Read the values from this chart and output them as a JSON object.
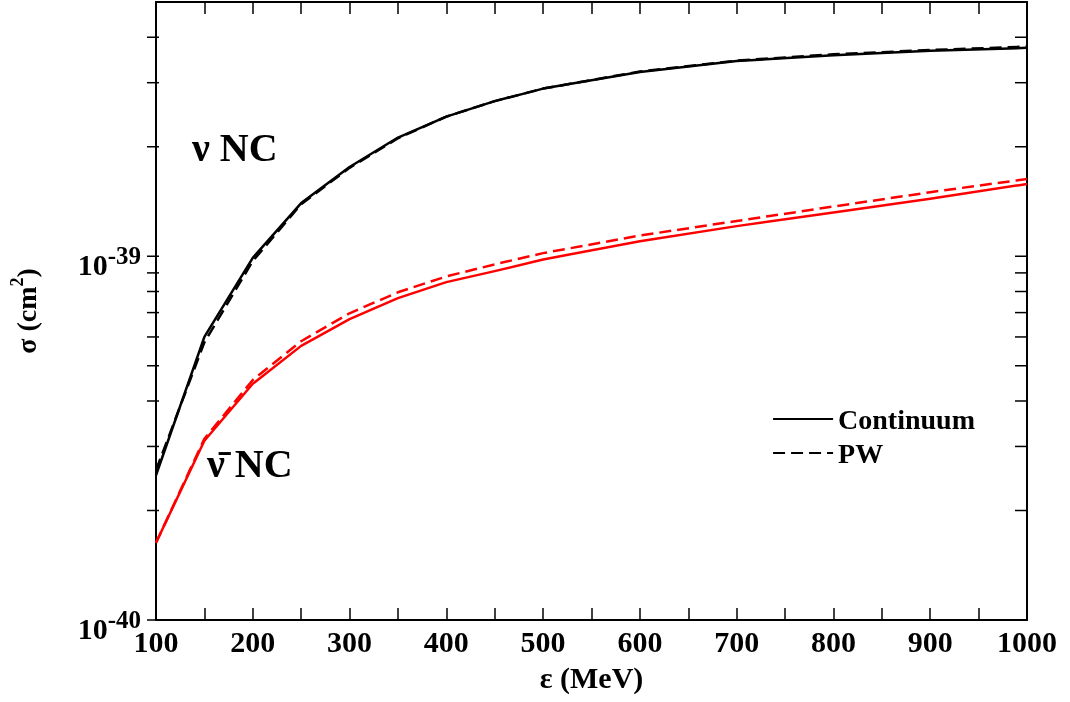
{
  "chart_data": {
    "type": "line",
    "xlabel": "ε (MeV)",
    "ylabel": "σ (cm$^{2}$)",
    "log": "y",
    "grid": false,
    "legend": "right",
    "marker": "none",
    "x": [
      100,
      150,
      200,
      250,
      300,
      350,
      400,
      450,
      500,
      600,
      700,
      800,
      900,
      1000
    ],
    "xlim": [
      100,
      1000
    ],
    "xticks": [
      100,
      {
        "value": 150,
        "label": null
      },
      200,
      {
        "value": 250,
        "label": null
      },
      300,
      {
        "value": 350,
        "label": null
      },
      400,
      {
        "value": 450,
        "label": null
      },
      500,
      {
        "value": 550,
        "label": null
      },
      600,
      {
        "value": 650,
        "label": null
      },
      700,
      {
        "value": 750,
        "label": null
      },
      800,
      {
        "value": 850,
        "label": null
      },
      900,
      {
        "value": 950,
        "label": null
      },
      1000
    ],
    "ylim": [
      1e-40,
      5e-39
    ],
    "yticks": [
      {
        "value": 1e-40,
        "label": "10$^{-40}$"
      },
      {
        "value": 2e-40,
        "label": null
      },
      {
        "value": 3e-40,
        "label": null
      },
      {
        "value": 4e-40,
        "label": null
      },
      {
        "value": 5e-40,
        "label": null
      },
      {
        "value": 6e-40,
        "label": null
      },
      {
        "value": 7e-40,
        "label": null
      },
      {
        "value": 8e-40,
        "label": null
      },
      {
        "value": 9e-40,
        "label": null
      },
      {
        "value": 1e-39,
        "label": "10$^{-39}$"
      },
      {
        "value": 2e-39,
        "label": null
      },
      {
        "value": 3e-39,
        "label": null
      },
      {
        "value": 4e-39,
        "label": null
      }
    ],
    "series": [
      {
        "name": "Continuum",
        "color": "#000000",
        "line_style": "solid",
        "values": [
          2.5e-40,
          6e-40,
          9.9e-40,
          1.4e-39,
          1.76e-39,
          2.12e-39,
          2.42e-39,
          2.67e-39,
          2.89e-39,
          3.21e-39,
          3.44e-39,
          3.57e-39,
          3.67e-39,
          3.74e-39
        ]
      },
      {
        "name": "PW",
        "color": "#000000",
        "line_style": "dashed",
        "values": [
          2.58e-40,
          5.8e-40,
          9.7e-40,
          1.39e-39,
          1.75e-39,
          2.11e-39,
          2.42e-39,
          2.67e-39,
          2.89e-39,
          3.22e-39,
          3.45e-39,
          3.59e-39,
          3.69e-39,
          3.77e-39
        ]
      },
      {
        "color": "#ff0000",
        "line_style": "solid",
        "values": [
          1.63e-40,
          3.11e-40,
          4.46e-40,
          5.67e-40,
          6.72e-40,
          7.67e-40,
          8.49e-40,
          9.1e-40,
          9.8e-40,
          1.1e-39,
          1.21e-39,
          1.32e-39,
          1.44e-39,
          1.58e-39
        ]
      },
      {
        "color": "#ff0000",
        "line_style": "dashed",
        "values": [
          1.63e-40,
          3.15e-40,
          4.57e-40,
          5.84e-40,
          6.97e-40,
          7.96e-40,
          8.8e-40,
          9.5e-40,
          1.02e-39,
          1.14e-39,
          1.25e-39,
          1.37e-39,
          1.5e-39,
          1.63e-39
        ]
      }
    ],
    "annotations": [
      "ν NC",
      "ν̄ NC"
    ]
  }
}
